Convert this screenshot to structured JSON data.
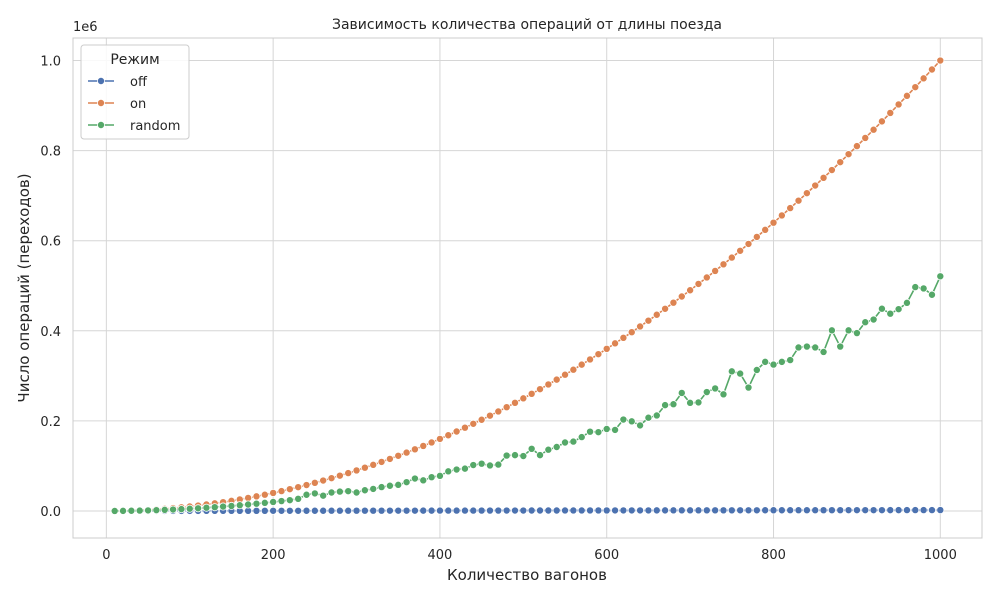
{
  "chart_data": {
    "type": "line",
    "title": "Зависимость количества операций от длины поезда",
    "xlabel": "Количество вагонов",
    "ylabel": "Число операций (переходов)",
    "y_scale_label": "1e6",
    "xlim": [
      -40,
      1050
    ],
    "ylim": [
      -0.06,
      1.05
    ],
    "x_ticks": [
      0,
      200,
      400,
      600,
      800,
      1000
    ],
    "y_ticks": [
      0.0,
      0.2,
      0.4,
      0.6,
      0.8,
      1.0
    ],
    "x_tick_labels": [
      "0",
      "200",
      "400",
      "600",
      "800",
      "1000"
    ],
    "y_tick_labels": [
      "0.0",
      "0.2",
      "0.4",
      "0.6",
      "0.8",
      "1.0"
    ],
    "grid": true,
    "legend": {
      "title": "Режим",
      "position": "top-left"
    },
    "x": [
      10,
      20,
      30,
      40,
      50,
      60,
      70,
      80,
      90,
      100,
      110,
      120,
      130,
      140,
      150,
      160,
      170,
      180,
      190,
      200,
      210,
      220,
      230,
      240,
      250,
      260,
      270,
      280,
      290,
      300,
      310,
      320,
      330,
      340,
      350,
      360,
      370,
      380,
      390,
      400,
      410,
      420,
      430,
      440,
      450,
      460,
      470,
      480,
      490,
      500,
      510,
      520,
      530,
      540,
      550,
      560,
      570,
      580,
      590,
      600,
      610,
      620,
      630,
      640,
      650,
      660,
      670,
      680,
      690,
      700,
      710,
      720,
      730,
      740,
      750,
      760,
      770,
      780,
      790,
      800,
      810,
      820,
      830,
      840,
      850,
      860,
      870,
      880,
      890,
      900,
      910,
      920,
      930,
      940,
      950,
      960,
      970,
      980,
      990,
      1000
    ],
    "series": [
      {
        "name": "off",
        "color": "#4c72b0",
        "values": [
          2e-05,
          4e-05,
          6e-05,
          8e-05,
          0.0001,
          0.00012,
          0.00014,
          0.00016,
          0.00018,
          0.0002,
          0.00022,
          0.00024,
          0.00026,
          0.00028,
          0.0003,
          0.00032,
          0.00034,
          0.00036,
          0.00038,
          0.0004,
          0.00042,
          0.00044,
          0.00046,
          0.00048,
          0.0005,
          0.00052,
          0.00054,
          0.00056,
          0.00058,
          0.0006,
          0.00062,
          0.00064,
          0.00066,
          0.00068,
          0.0007,
          0.00072,
          0.00074,
          0.00076,
          0.00078,
          0.0008,
          0.00082,
          0.00084,
          0.00086,
          0.00088,
          0.0009,
          0.00092,
          0.00094,
          0.00096,
          0.00098,
          0.001,
          0.00102,
          0.00104,
          0.00106,
          0.00108,
          0.0011,
          0.00112,
          0.00114,
          0.00116,
          0.00118,
          0.0012,
          0.00122,
          0.00124,
          0.00126,
          0.00128,
          0.0013,
          0.00132,
          0.00134,
          0.00136,
          0.00138,
          0.0014,
          0.00142,
          0.00144,
          0.00146,
          0.00148,
          0.0015,
          0.00152,
          0.00154,
          0.00156,
          0.00158,
          0.0016,
          0.00162,
          0.00164,
          0.00166,
          0.00168,
          0.0017,
          0.00172,
          0.00174,
          0.00176,
          0.00178,
          0.0018,
          0.00182,
          0.00184,
          0.00186,
          0.00188,
          0.0019,
          0.00192,
          0.00194,
          0.00196,
          0.00198,
          0.002
        ]
      },
      {
        "name": "on",
        "color": "#dd8452",
        "values": [
          0.0001,
          0.0004,
          0.0009,
          0.0016,
          0.0025,
          0.0036,
          0.0049,
          0.0064,
          0.0081,
          0.01,
          0.0121,
          0.0144,
          0.0169,
          0.0196,
          0.0225,
          0.0256,
          0.0289,
          0.0324,
          0.0361,
          0.04,
          0.0441,
          0.0484,
          0.0529,
          0.0576,
          0.0625,
          0.0676,
          0.0729,
          0.0784,
          0.0841,
          0.09,
          0.0961,
          0.1024,
          0.1089,
          0.1156,
          0.1225,
          0.1296,
          0.1369,
          0.1444,
          0.1521,
          0.16,
          0.1681,
          0.1764,
          0.1849,
          0.1936,
          0.2025,
          0.2116,
          0.2209,
          0.2304,
          0.2401,
          0.25,
          0.2601,
          0.2704,
          0.2809,
          0.2916,
          0.3025,
          0.3136,
          0.3249,
          0.3364,
          0.3481,
          0.36,
          0.3721,
          0.3844,
          0.3969,
          0.4096,
          0.4225,
          0.4356,
          0.4489,
          0.4624,
          0.4761,
          0.49,
          0.5041,
          0.5184,
          0.5329,
          0.5476,
          0.5625,
          0.5776,
          0.5929,
          0.6084,
          0.6241,
          0.64,
          0.6561,
          0.6724,
          0.6889,
          0.7056,
          0.7225,
          0.7396,
          0.7569,
          0.7744,
          0.7921,
          0.81,
          0.8281,
          0.8464,
          0.8649,
          0.8836,
          0.9025,
          0.9216,
          0.9409,
          0.9604,
          0.9801,
          1.0
        ]
      },
      {
        "name": "random",
        "color": "#55a868",
        "values": [
          0.0,
          0.0002,
          0.0005,
          0.0008,
          0.0013,
          0.0018,
          0.0025,
          0.0032,
          0.0041,
          0.005,
          0.006,
          0.0072,
          0.0084,
          0.0098,
          0.0112,
          0.0128,
          0.0144,
          0.0162,
          0.018,
          0.02,
          0.022,
          0.024,
          0.027,
          0.036,
          0.039,
          0.034,
          0.041,
          0.043,
          0.044,
          0.041,
          0.046,
          0.049,
          0.053,
          0.056,
          0.058,
          0.064,
          0.072,
          0.068,
          0.075,
          0.078,
          0.088,
          0.092,
          0.094,
          0.102,
          0.105,
          0.101,
          0.103,
          0.123,
          0.124,
          0.122,
          0.138,
          0.124,
          0.136,
          0.142,
          0.152,
          0.154,
          0.164,
          0.176,
          0.175,
          0.182,
          0.18,
          0.203,
          0.199,
          0.19,
          0.207,
          0.212,
          0.235,
          0.237,
          0.262,
          0.24,
          0.241,
          0.264,
          0.272,
          0.259,
          0.31,
          0.305,
          0.274,
          0.313,
          0.331,
          0.325,
          0.331,
          0.335,
          0.363,
          0.365,
          0.363,
          0.353,
          0.401,
          0.365,
          0.401,
          0.395,
          0.419,
          0.425,
          0.449,
          0.438,
          0.448,
          0.462,
          0.497,
          0.494,
          0.48,
          0.521
        ]
      }
    ]
  }
}
